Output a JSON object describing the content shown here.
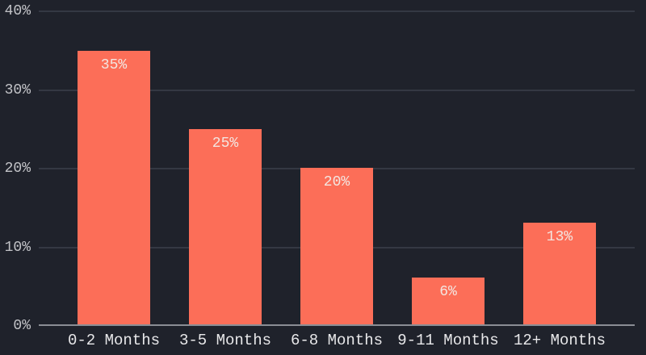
{
  "chart_data": {
    "type": "bar",
    "title": "",
    "categories": [
      "0-2 Months",
      "3-5 Months",
      "6-8 Months",
      "9-11 Months",
      "12+ Months"
    ],
    "values": [
      35,
      25,
      20,
      6,
      13
    ],
    "value_labels": [
      "35%",
      "25%",
      "20%",
      "6%",
      "13%"
    ],
    "y_ticks": [
      {
        "value": 0,
        "label": "0%"
      },
      {
        "value": 10,
        "label": "10%"
      },
      {
        "value": 20,
        "label": "20%"
      },
      {
        "value": 30,
        "label": "30%"
      },
      {
        "value": 40,
        "label": "40%"
      }
    ],
    "ylim": [
      0,
      40
    ],
    "xlabel": "",
    "ylabel": "",
    "grid": true,
    "legend": false,
    "colors": {
      "background": "#1f222b",
      "bar": "#fc6e58",
      "gridline": "#343843",
      "axis_line": "#8a8d94",
      "y_tick_label": "#c2c3c7",
      "x_tick_label": "#e8e8ea",
      "value_label": "#f3e5e0"
    }
  }
}
